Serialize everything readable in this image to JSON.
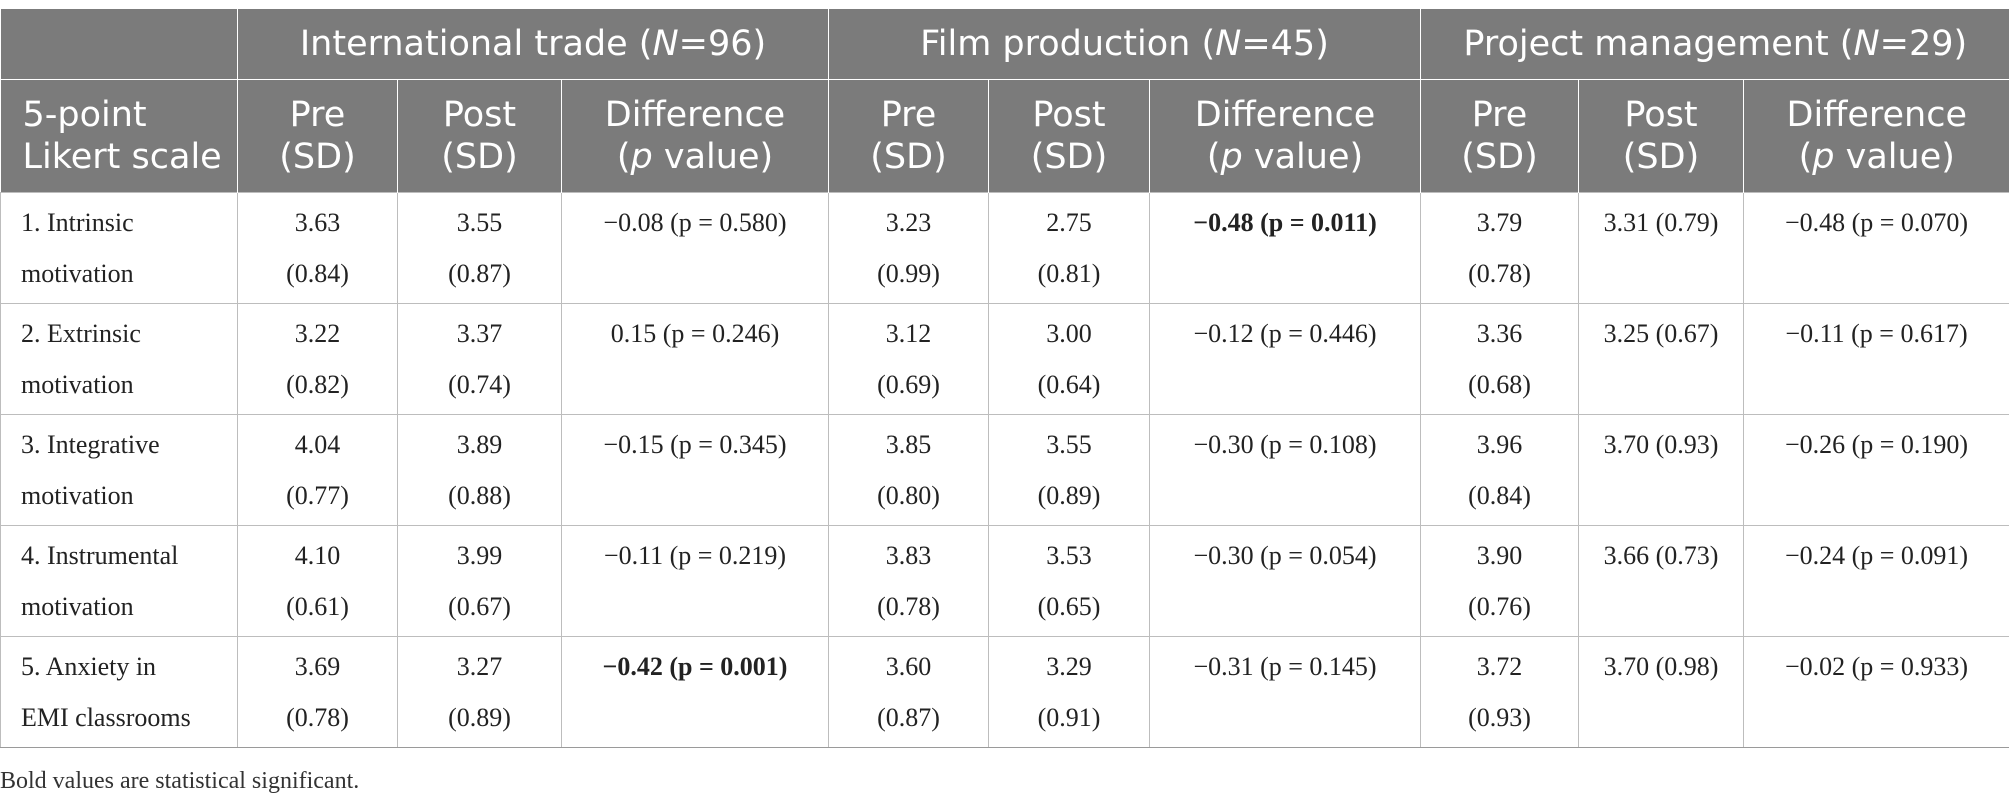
{
  "groups": [
    {
      "name": "International trade (",
      "n_label": "N",
      "n_value": "=96)"
    },
    {
      "name": "Film production (",
      "n_label": "N",
      "n_value": "=45)"
    },
    {
      "name": "Project management (",
      "n_label": "N",
      "n_value": "=29)"
    }
  ],
  "subheaders": {
    "scale_line1": "5-point",
    "scale_line2": "Likert scale",
    "pre_line1": "Pre",
    "pre_line2": "(SD)",
    "post_line1": "Post",
    "post_line2": "(SD)",
    "diff_line1": "Difference",
    "diff_line2_p": "p",
    "diff_line2_rest": " value)",
    "diff_line2_open": "("
  },
  "rows": [
    {
      "label1": "1. Intrinsic",
      "label2": "motivation",
      "it_pre": "3.63",
      "it_pre_sd": "(0.84)",
      "it_post": "3.55",
      "it_post_sd": "(0.87)",
      "it_diff": "−0.08 (p = 0.580)",
      "fp_pre": "3.23",
      "fp_pre_sd": "(0.99)",
      "fp_post": "2.75",
      "fp_post_sd": "(0.81)",
      "fp_diff": "−0.48 (p = 0.011)",
      "pm_pre": "3.79",
      "pm_pre_sd": "(0.78)",
      "pm_post": "3.31 (0.79)",
      "pm_diff": "−0.48 (p = 0.070)"
    },
    {
      "label1": "2. Extrinsic",
      "label2": "motivation",
      "it_pre": "3.22",
      "it_pre_sd": "(0.82)",
      "it_post": "3.37",
      "it_post_sd": "(0.74)",
      "it_diff": "0.15 (p = 0.246)",
      "fp_pre": "3.12",
      "fp_pre_sd": "(0.69)",
      "fp_post": "3.00",
      "fp_post_sd": "(0.64)",
      "fp_diff": "−0.12 (p = 0.446)",
      "pm_pre": "3.36",
      "pm_pre_sd": "(0.68)",
      "pm_post": "3.25 (0.67)",
      "pm_diff": "−0.11 (p = 0.617)"
    },
    {
      "label1": "3. Integrative",
      "label2": "motivation",
      "it_pre": "4.04",
      "it_pre_sd": "(0.77)",
      "it_post": "3.89",
      "it_post_sd": "(0.88)",
      "it_diff": "−0.15 (p = 0.345)",
      "fp_pre": "3.85",
      "fp_pre_sd": "(0.80)",
      "fp_post": "3.55",
      "fp_post_sd": "(0.89)",
      "fp_diff": "−0.30 (p = 0.108)",
      "pm_pre": "3.96",
      "pm_pre_sd": "(0.84)",
      "pm_post": "3.70 (0.93)",
      "pm_diff": "−0.26 (p = 0.190)"
    },
    {
      "label1": "4. Instrumental",
      "label2": "motivation",
      "it_pre": "4.10",
      "it_pre_sd": "(0.61)",
      "it_post": "3.99",
      "it_post_sd": "(0.67)",
      "it_diff": "−0.11 (p = 0.219)",
      "fp_pre": "3.83",
      "fp_pre_sd": "(0.78)",
      "fp_post": "3.53",
      "fp_post_sd": "(0.65)",
      "fp_diff": "−0.30 (p = 0.054)",
      "pm_pre": "3.90",
      "pm_pre_sd": "(0.76)",
      "pm_post": "3.66 (0.73)",
      "pm_diff": "−0.24 (p = 0.091)"
    },
    {
      "label1": "5. Anxiety in",
      "label2": "EMI classrooms",
      "it_pre": "3.69",
      "it_pre_sd": "(0.78)",
      "it_post": "3.27",
      "it_post_sd": "(0.89)",
      "it_diff": "−0.42 (p = 0.001)",
      "fp_pre": "3.60",
      "fp_pre_sd": "(0.87)",
      "fp_post": "3.29",
      "fp_post_sd": "(0.91)",
      "fp_diff": "−0.31 (p = 0.145)",
      "pm_pre": "3.72",
      "pm_pre_sd": "(0.93)",
      "pm_post": "3.70 (0.98)",
      "pm_diff": "−0.02 (p = 0.933)"
    }
  ],
  "note": "Bold values are statistical significant.",
  "colors": {
    "header_bg": "#7b7b7b",
    "header_text": "#ffffff",
    "grid": "#bdbdbd"
  }
}
